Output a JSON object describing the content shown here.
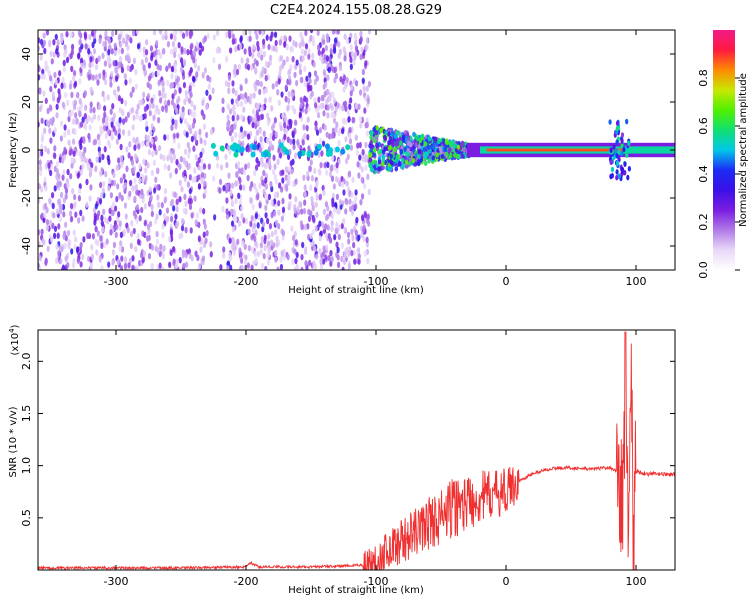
{
  "figure": {
    "title": "C2E4.2024.155.08.28.G29"
  },
  "chart_data": [
    {
      "type": "heatmap",
      "title": "C2E4.2024.155.08.28.G29",
      "xlabel": "Height of straight line (km)",
      "ylabel": "Frequency (Hz)",
      "xlim": [
        -360,
        130
      ],
      "ylim": [
        -50,
        50
      ],
      "x_ticks": [
        -300,
        -200,
        -100,
        0,
        100
      ],
      "x_tick_labels": [
        "-300",
        "-200",
        "-100",
        "0",
        "100"
      ],
      "y_ticks": [
        -40,
        -20,
        0,
        20,
        40
      ],
      "y_tick_labels": [
        "-40",
        "-20",
        "0",
        "20",
        "40"
      ],
      "colorbar": {
        "label": "Normalized spectral amplitude",
        "range": [
          0,
          1
        ],
        "ticks": [
          0.0,
          0.2,
          0.4,
          0.6,
          0.8
        ],
        "tick_labels": [
          "0.0",
          "0.2",
          "0.4",
          "0.6",
          "0.8"
        ],
        "colormap": [
          "#ffffff",
          "#e8d8f8",
          "#b07ae8",
          "#7a1de0",
          "#3b10e8",
          "#1b2cf5",
          "#00c8e8",
          "#10e070",
          "#50f000",
          "#c8e800",
          "#ff8a00",
          "#ff1a40",
          "#f01a8a"
        ]
      },
      "grid": false,
      "regions": [
        {
          "description_free": true,
          "x": [
            -360,
            -105
          ],
          "freq_spread": [
            -50,
            50
          ],
          "level": 0.25
        },
        {
          "description_free": true,
          "x": [
            -105,
            -30
          ],
          "freq_spread": [
            -10,
            10
          ],
          "level": 0.4
        },
        {
          "description_free": true,
          "x": [
            -30,
            130
          ],
          "freq_spread": [
            -3,
            3
          ],
          "level": 0.85
        }
      ]
    },
    {
      "type": "line",
      "xlabel": "Height of straight line (km)",
      "ylabel": "SNR (10 * v/v)",
      "y_multiplier_label": "(x10",
      "y_multiplier_exp": "4",
      "y_multiplier_close": ")",
      "xlim": [
        -360,
        130
      ],
      "ylim": [
        0,
        2.3
      ],
      "x_ticks": [
        -300,
        -200,
        -100,
        0,
        100
      ],
      "x_tick_labels": [
        "-300",
        "-200",
        "-100",
        "0",
        "100"
      ],
      "y_ticks": [
        0.5,
        1.0,
        1.5,
        2.0
      ],
      "y_tick_labels": [
        "0.5",
        "1.0",
        "1.5",
        "2.0"
      ],
      "color": "#f03030",
      "grid": false,
      "series": [
        {
          "x": [
            -360,
            -300,
            -250,
            -200,
            -197,
            -190,
            -150,
            -120,
            -110,
            -100,
            -90,
            -80,
            -70,
            -60,
            -50,
            -40,
            -30,
            -20,
            -10,
            0,
            10,
            20,
            30,
            40,
            50,
            60,
            70,
            75,
            80,
            85,
            90,
            92,
            94,
            96,
            98,
            100,
            105,
            110,
            120,
            130
          ],
          "y": [
            0.02,
            0.02,
            0.02,
            0.03,
            0.07,
            0.03,
            0.03,
            0.04,
            0.05,
            0.08,
            0.2,
            0.28,
            0.35,
            0.45,
            0.5,
            0.6,
            0.65,
            0.7,
            0.72,
            0.76,
            0.85,
            0.92,
            0.96,
            0.98,
            0.98,
            0.97,
            0.97,
            0.98,
            0.98,
            0.95,
            0.6,
            2.2,
            0.3,
            2.0,
            0.4,
            0.95,
            0.93,
            0.92,
            0.92,
            0.91
          ]
        }
      ]
    }
  ]
}
